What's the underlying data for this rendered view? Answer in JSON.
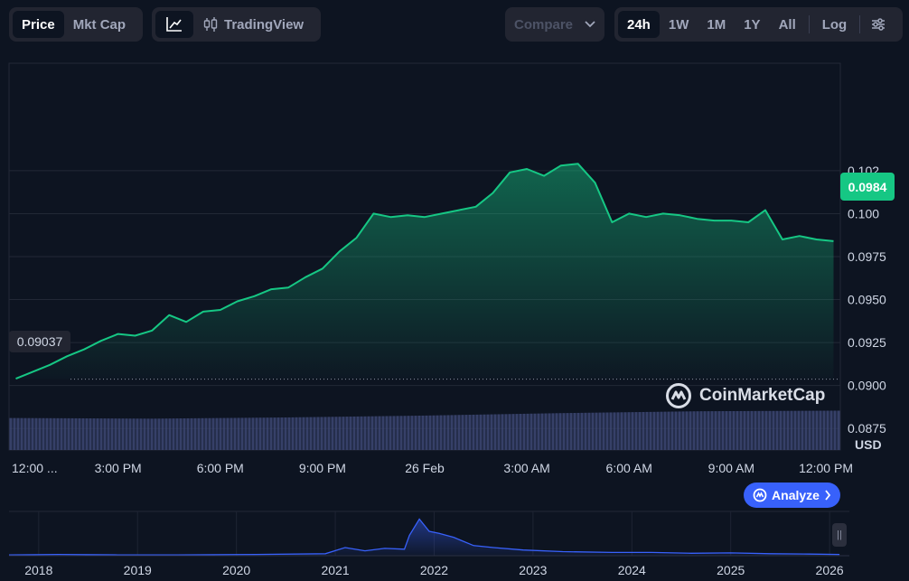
{
  "toolbar": {
    "view_tabs": [
      {
        "label": "Price",
        "active": true
      },
      {
        "label": "Mkt Cap",
        "active": false
      }
    ],
    "tradingview_label": "TradingView",
    "compare_label": "Compare",
    "ranges": [
      {
        "label": "24h",
        "active": true
      },
      {
        "label": "1W",
        "active": false
      },
      {
        "label": "1M",
        "active": false
      },
      {
        "label": "1Y",
        "active": false
      },
      {
        "label": "All",
        "active": false
      }
    ],
    "log_label": "Log"
  },
  "current_price_label": "0.0984",
  "open_price_label": "0.09037",
  "watermark": "CoinMarketCap",
  "analyze_label": "Analyze",
  "colors": {
    "line": "#16c784",
    "volume": "#3b4570",
    "nav_line": "#3861fb",
    "accent": "#3861fb"
  },
  "chart_data": {
    "type": "area",
    "currency": "USD",
    "y_ticks": [
      "0.102",
      "0.100",
      "0.0975",
      "0.0950",
      "0.0925",
      "0.0900",
      "0.0875"
    ],
    "y_tick_values": [
      0.1025,
      0.1,
      0.0975,
      0.095,
      0.0925,
      0.09,
      0.0875
    ],
    "ylim": [
      0.08625,
      0.10875
    ],
    "x_ticks": [
      "12:00 ...",
      "3:00 PM",
      "6:00 PM",
      "9:00 PM",
      "26 Feb",
      "3:00 AM",
      "6:00 AM",
      "9:00 AM",
      "12:00 PM"
    ],
    "x_tick_hours": [
      0,
      3,
      6,
      9,
      12,
      15,
      18,
      21,
      24
    ],
    "xlim_hours": [
      -0.2,
      24.2
    ],
    "open_price": 0.09037,
    "last_price": 0.0984,
    "series": [
      {
        "hours": [
          0,
          0.5,
          1,
          1.5,
          2,
          2.5,
          3,
          3.5,
          4,
          4.5,
          5,
          5.5,
          6,
          6.5,
          7,
          7.5,
          8,
          8.5,
          9,
          9.5,
          10,
          10.5,
          11,
          11.5,
          12,
          12.5,
          13,
          13.5,
          14,
          14.5,
          15,
          15.5,
          16,
          16.5,
          17,
          17.5,
          18,
          18.5,
          19,
          19.5,
          20,
          20.5,
          21,
          21.5,
          22,
          22.5,
          23,
          23.5,
          24
        ],
        "values": [
          0.0904,
          0.0908,
          0.0912,
          0.0917,
          0.0921,
          0.0926,
          0.093,
          0.0929,
          0.0932,
          0.0941,
          0.0937,
          0.0943,
          0.0944,
          0.0949,
          0.0952,
          0.0956,
          0.0957,
          0.0963,
          0.0968,
          0.0978,
          0.0986,
          0.1,
          0.0998,
          0.0999,
          0.0998,
          0.1,
          0.1002,
          0.1004,
          0.1012,
          0.1024,
          0.1026,
          0.1022,
          0.1028,
          0.1029,
          0.1018,
          0.0995,
          0.1,
          0.0998,
          0.1,
          0.0999,
          0.0997,
          0.0996,
          0.0996,
          0.0995,
          0.1002,
          0.0985,
          0.0987,
          0.0985,
          0.0984
        ]
      }
    ],
    "volume": {
      "hours": [
        0,
        4,
        8,
        12,
        16,
        20,
        24
      ],
      "values": [
        0.52,
        0.51,
        0.53,
        0.56,
        0.6,
        0.63,
        0.64
      ]
    },
    "navigator": {
      "x_ticks": [
        "2018",
        "2019",
        "2020",
        "2021",
        "2022",
        "2023",
        "2024",
        "2025",
        "2026"
      ],
      "years": [
        2017.7,
        2018.2,
        2018.8,
        2019.4,
        2020.2,
        2020.9,
        2021.1,
        2021.3,
        2021.5,
        2021.7,
        2021.75,
        2021.85,
        2021.95,
        2022.05,
        2022.2,
        2022.4,
        2022.6,
        2022.9,
        2023.3,
        2023.8,
        2024.2,
        2024.6,
        2025.0,
        2025.4,
        2025.8,
        2026.1
      ],
      "values": [
        0.02,
        0.03,
        0.02,
        0.02,
        0.03,
        0.05,
        0.2,
        0.12,
        0.18,
        0.16,
        0.5,
        0.9,
        0.6,
        0.55,
        0.45,
        0.25,
        0.2,
        0.14,
        0.1,
        0.08,
        0.08,
        0.06,
        0.07,
        0.05,
        0.04,
        0.03
      ],
      "xlim_years": [
        2017.7,
        2026.2
      ]
    }
  }
}
